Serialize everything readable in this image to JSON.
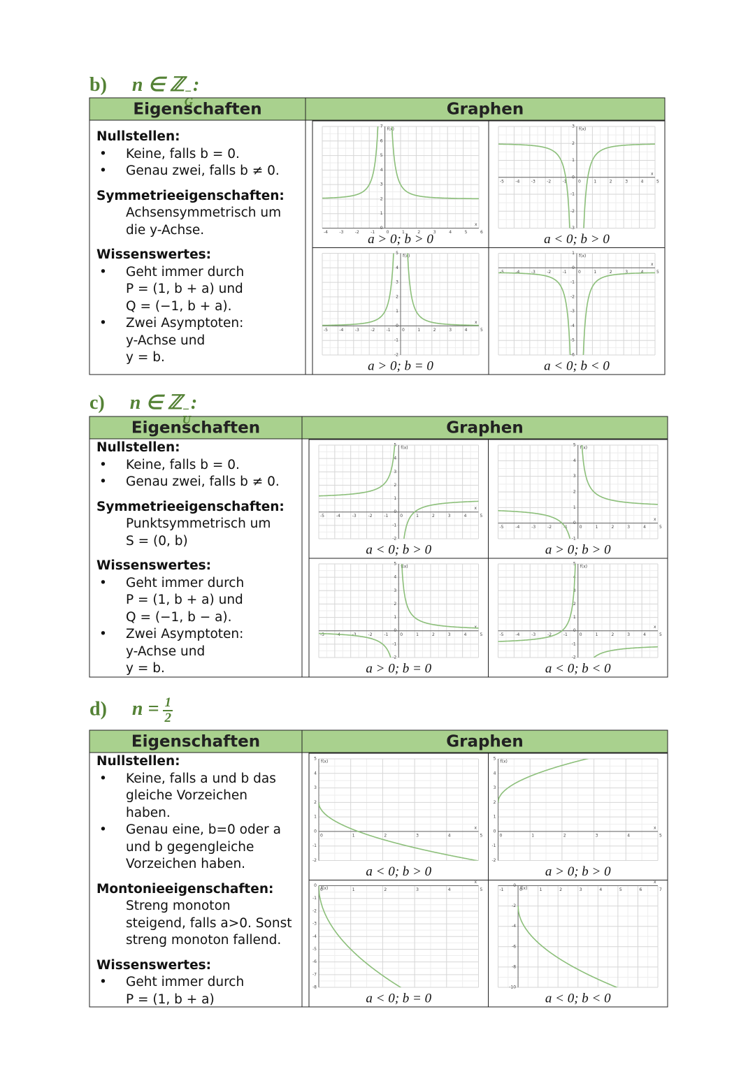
{
  "sections": [
    {
      "heading": {
        "label": "b)",
        "symbol": "n ∈ ℤ",
        "sup": "−",
        "sub": "G",
        "colon": ":"
      },
      "table": {
        "col1": "Eigenschaften",
        "col2": "Graphen",
        "blocks": [
          {
            "title": "Nullstellen:",
            "bullets": [
              [
                "Keine, falls b = 0."
              ],
              [
                "Genau zwei, falls b ≠ 0."
              ]
            ]
          },
          {
            "title": "Symmetrieeigenschaften:",
            "lines": [
              "Achsensymmetrisch um",
              "die y-Achse."
            ]
          },
          {
            "title": "Wissenswertes:",
            "bullets": [
              [
                "Geht immer durch",
                "P = (1, b + a) und",
                "Q = (−1, b + a)."
              ],
              [
                "Zwei Asymptoten:",
                "y-Achse und",
                "y = b."
              ]
            ]
          }
        ],
        "graphs": [
          {
            "caption": "a > 0; b > 0",
            "xlabel": "x",
            "ylabel": "f(x)",
            "xticks": [
              -4,
              -3,
              -2,
              -1,
              0,
              1,
              2,
              3,
              4,
              5,
              6
            ],
            "yticks": [
              0,
              1,
              2,
              3,
              4,
              5,
              6,
              7
            ]
          },
          {
            "caption": "a < 0; b > 0",
            "xlabel": "x",
            "ylabel": "f(x)",
            "xticks": [
              -5,
              -4,
              -3,
              -2,
              -1,
              0,
              1,
              2,
              3,
              4,
              5
            ],
            "yticks": [
              -3,
              -2,
              -1,
              0,
              1,
              2,
              3
            ]
          },
          {
            "caption": "a > 0; b = 0",
            "xlabel": "x",
            "ylabel": "f(x)",
            "xticks": [
              -5,
              -4,
              -3,
              -2,
              -1,
              0,
              1,
              2,
              3,
              4,
              5
            ],
            "yticks": [
              -2,
              -1,
              0,
              1,
              2,
              3,
              4,
              5
            ]
          },
          {
            "caption": "a < 0; b < 0",
            "xlabel": "x",
            "ylabel": "f(x)",
            "xticks": [
              -5,
              -4,
              -3,
              -2,
              -1,
              0,
              1,
              2,
              3,
              4,
              5
            ],
            "yticks": [
              -6,
              -5,
              -4,
              -3,
              -2,
              -1,
              0,
              1
            ]
          }
        ]
      }
    },
    {
      "heading": {
        "label": "c)",
        "symbol": "n ∈ ℤ",
        "sup": "−",
        "sub": "U",
        "colon": ":"
      },
      "table": {
        "col1": "Eigenschaften",
        "col2": "Graphen",
        "blocks": [
          {
            "title": "Nullstellen:",
            "bullets": [
              [
                "Keine, falls b = 0."
              ],
              [
                "Genau zwei, falls b ≠ 0."
              ]
            ]
          },
          {
            "title": "Symmetrieeigenschaften:",
            "lines": [
              "Punktsymmetrisch um",
              "S = (0, b)"
            ]
          },
          {
            "title": "Wissenswertes:",
            "bullets": [
              [
                "Geht immer durch",
                "P = (1, b + a) und",
                "Q = (−1, b − a)."
              ],
              [
                "Zwei Asymptoten:",
                "y-Achse und",
                "y = b."
              ]
            ]
          }
        ],
        "graphs": [
          {
            "caption": "a < 0; b > 0",
            "xlabel": "x",
            "ylabel": "f(x)",
            "xticks": [
              -5,
              -4,
              -3,
              -2,
              -1,
              0,
              1,
              2,
              3,
              4,
              5
            ],
            "yticks": [
              -2,
              -1,
              0,
              1,
              2,
              3,
              4,
              5
            ]
          },
          {
            "caption": "a > 0; b > 0",
            "xlabel": "x",
            "ylabel": "f(x)",
            "xticks": [
              -5,
              -4,
              -3,
              -2,
              -1,
              0,
              1,
              2,
              3,
              4,
              5
            ],
            "yticks": [
              -1,
              0,
              1,
              2,
              3,
              4,
              5
            ]
          },
          {
            "caption": "a > 0; b = 0",
            "xlabel": "x",
            "ylabel": "f(x)",
            "xticks": [
              -5,
              -4,
              -3,
              -2,
              -1,
              0,
              1,
              2,
              3,
              4,
              5
            ],
            "yticks": [
              -2,
              -1,
              0,
              1,
              2,
              3,
              4,
              5
            ]
          },
          {
            "caption": "a < 0; b < 0",
            "xlabel": "x",
            "ylabel": "f(x)",
            "xticks": [
              -5,
              -4,
              -3,
              -2,
              -1,
              0,
              1,
              2,
              3,
              4,
              5
            ],
            "yticks": [
              -2,
              -1,
              0,
              1,
              2,
              3,
              4,
              5
            ]
          }
        ]
      }
    },
    {
      "heading": {
        "label": "d)",
        "symbol": "n =",
        "numerator": "1",
        "denominator": "2"
      },
      "table": {
        "col1": "Eigenschaften",
        "col2": "Graphen",
        "blocks": [
          {
            "title": "Nullstellen:",
            "bullets": [
              [
                "Keine, falls a und b das",
                "gleiche Vorzeichen",
                "haben."
              ],
              [
                "Genau eine, b=0 oder a",
                "und b gegengleiche",
                "Vorzeichen haben."
              ]
            ]
          },
          {
            "title": "Montonieeigenschaften:",
            "lines": [
              "Streng monoton",
              "steigend, falls a>0. Sonst",
              "streng monoton fallend."
            ]
          },
          {
            "title": "Wissenswertes:",
            "bullets": [
              [
                "Geht immer durch",
                "P = (1, b + a)"
              ]
            ]
          }
        ],
        "graphs": [
          {
            "caption": "a < 0; b > 0",
            "xlabel": "x",
            "ylabel": "f(x)",
            "xticks": [
              0,
              1,
              2,
              3,
              4,
              5
            ],
            "yticks": [
              -2,
              -1,
              0,
              1,
              2,
              3,
              4,
              5
            ]
          },
          {
            "caption": "a > 0; b > 0",
            "xlabel": "x",
            "ylabel": "f(x)",
            "xticks": [
              0,
              1,
              2,
              3,
              4,
              5
            ],
            "yticks": [
              -2,
              -1,
              0,
              1,
              2,
              3,
              4,
              5
            ]
          },
          {
            "caption": "a < 0; b = 0",
            "xlabel": "x",
            "ylabel": "f(x)",
            "xticks": [
              0,
              1,
              2,
              3,
              4,
              5
            ],
            "yticks": [
              -8,
              -7,
              -6,
              -5,
              -4,
              -3,
              -2,
              -1,
              0
            ]
          },
          {
            "caption": "a < 0; b < 0",
            "xlabel": "x",
            "ylabel": "f(x)",
            "xticks": [
              -1,
              0,
              1,
              2,
              3,
              4,
              5,
              6,
              7
            ],
            "yticks": [
              -10,
              -8,
              -6,
              -4,
              -2,
              0
            ]
          }
        ]
      }
    }
  ]
}
